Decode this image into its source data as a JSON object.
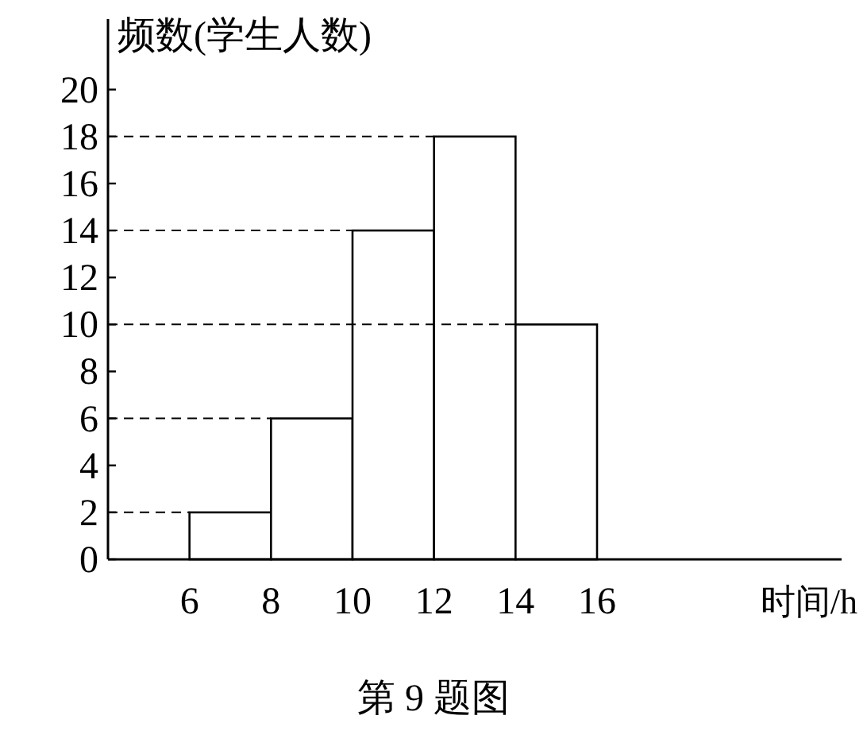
{
  "chart_data": {
    "type": "histogram",
    "ylabel": "频数(学生人数)",
    "xlabel": "时间/h",
    "bins": [
      6,
      8,
      10,
      12,
      14,
      16
    ],
    "values": [
      2,
      6,
      14,
      18,
      10
    ],
    "color": "#ffffff",
    "xlim": [
      4,
      22
    ],
    "xticks": [
      6,
      8,
      10,
      12,
      14,
      16
    ],
    "ylim": [
      0,
      23
    ],
    "yticks": [
      0,
      2,
      4,
      6,
      8,
      10,
      12,
      14,
      16,
      18,
      20
    ],
    "ref_lines": [
      {
        "axis": "y",
        "value": 2,
        "color": "#000000",
        "line_style": "dashed"
      },
      {
        "axis": "y",
        "value": 6,
        "color": "#000000",
        "line_style": "dashed"
      },
      {
        "axis": "y",
        "value": 10,
        "color": "#000000",
        "line_style": "dashed"
      },
      {
        "axis": "y",
        "value": 14,
        "color": "#000000",
        "line_style": "dashed"
      },
      {
        "axis": "y",
        "value": 18,
        "color": "#000000",
        "line_style": "dashed"
      }
    ],
    "annotations": [
      "第 9 题图"
    ],
    "grid": false
  }
}
